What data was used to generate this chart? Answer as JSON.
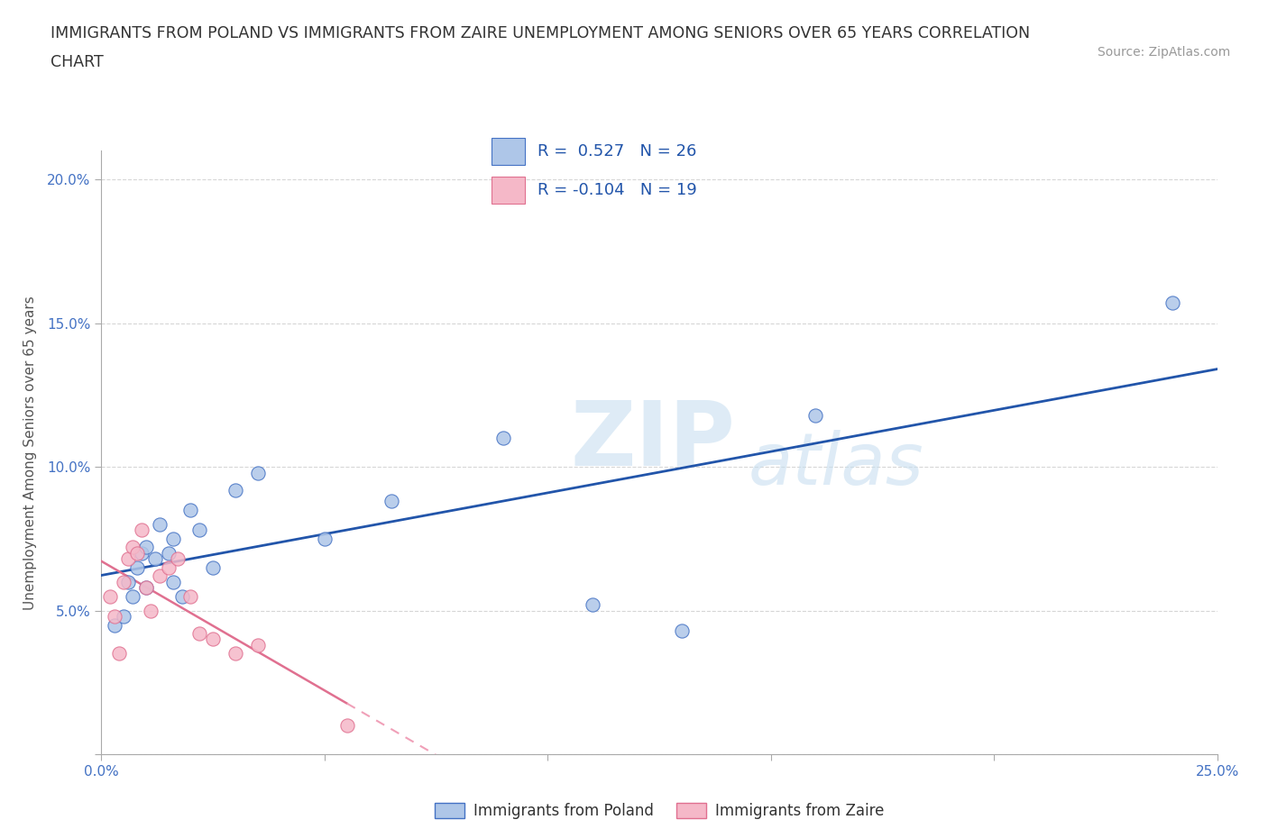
{
  "title_line1": "IMMIGRANTS FROM POLAND VS IMMIGRANTS FROM ZAIRE UNEMPLOYMENT AMONG SENIORS OVER 65 YEARS CORRELATION",
  "title_line2": "CHART",
  "source": "Source: ZipAtlas.com",
  "ylabel": "Unemployment Among Seniors over 65 years",
  "xlim": [
    0.0,
    0.25
  ],
  "ylim": [
    0.0,
    0.21
  ],
  "xticks": [
    0.0,
    0.05,
    0.1,
    0.15,
    0.2,
    0.25
  ],
  "xticklabels": [
    "0.0%",
    "",
    "",
    "",
    "",
    "25.0%"
  ],
  "yticks": [
    0.0,
    0.05,
    0.1,
    0.15,
    0.2
  ],
  "yticklabels": [
    "",
    "5.0%",
    "10.0%",
    "15.0%",
    "20.0%"
  ],
  "poland_color": "#aec6e8",
  "poland_edge_color": "#4472c4",
  "zaire_color": "#f5b8c8",
  "zaire_edge_color": "#e07090",
  "poland_line_color": "#2255aa",
  "zaire_solid_color": "#e07090",
  "zaire_dash_color": "#f0a0b8",
  "R_poland": "0.527",
  "N_poland": "26",
  "R_zaire": "-0.104",
  "N_zaire": "19",
  "watermark_zip": "ZIP",
  "watermark_atlas": "atlas",
  "poland_x": [
    0.003,
    0.005,
    0.006,
    0.007,
    0.008,
    0.009,
    0.01,
    0.01,
    0.012,
    0.013,
    0.015,
    0.016,
    0.016,
    0.018,
    0.02,
    0.022,
    0.025,
    0.03,
    0.035,
    0.05,
    0.065,
    0.09,
    0.11,
    0.13,
    0.16,
    0.24
  ],
  "poland_y": [
    0.045,
    0.048,
    0.06,
    0.055,
    0.065,
    0.07,
    0.072,
    0.058,
    0.068,
    0.08,
    0.07,
    0.06,
    0.075,
    0.055,
    0.085,
    0.078,
    0.065,
    0.092,
    0.098,
    0.075,
    0.088,
    0.11,
    0.052,
    0.043,
    0.118,
    0.157
  ],
  "zaire_x": [
    0.002,
    0.003,
    0.004,
    0.005,
    0.006,
    0.007,
    0.008,
    0.009,
    0.01,
    0.011,
    0.013,
    0.015,
    0.017,
    0.02,
    0.022,
    0.025,
    0.03,
    0.035,
    0.055
  ],
  "zaire_y": [
    0.055,
    0.048,
    0.035,
    0.06,
    0.068,
    0.072,
    0.07,
    0.078,
    0.058,
    0.05,
    0.062,
    0.065,
    0.068,
    0.055,
    0.042,
    0.04,
    0.035,
    0.038,
    0.01
  ]
}
